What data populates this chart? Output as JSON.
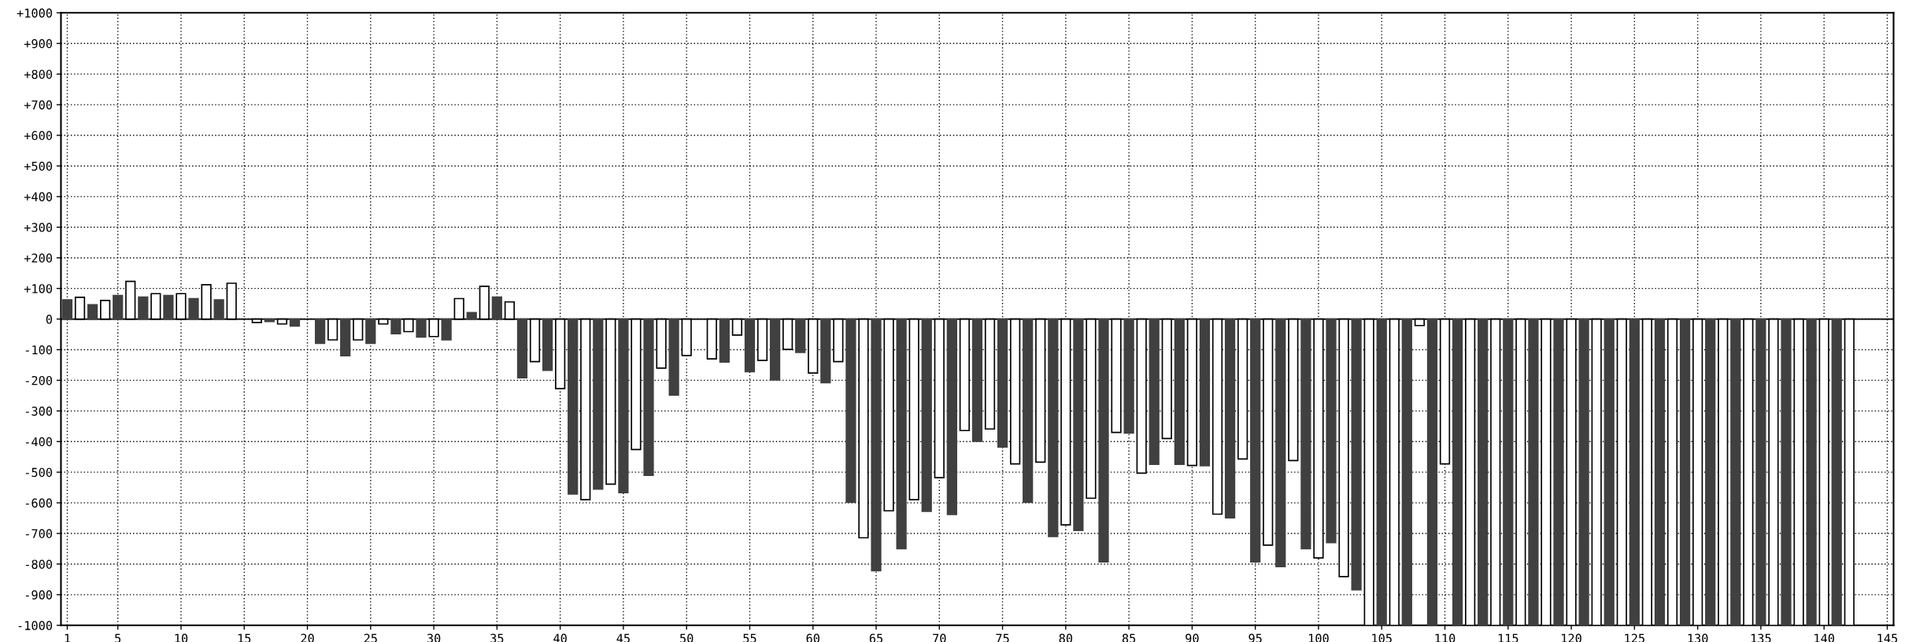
{
  "chart_data": {
    "type": "bar",
    "x": [
      1,
      2,
      3,
      4,
      5,
      6,
      7,
      8,
      9,
      10,
      11,
      12,
      13,
      14,
      15,
      16,
      17,
      18,
      19,
      20,
      21,
      22,
      23,
      24,
      25,
      26,
      27,
      28,
      29,
      30,
      31,
      32,
      33,
      34,
      35,
      36,
      37,
      38,
      39,
      40,
      41,
      42,
      43,
      44,
      45,
      46,
      47,
      48,
      49,
      50,
      51,
      52,
      53,
      54,
      55,
      56,
      57,
      58,
      59,
      60,
      61,
      62,
      63,
      64,
      65,
      66,
      67,
      68,
      69,
      70,
      71,
      72,
      73,
      74,
      75,
      76,
      77,
      78,
      79,
      80,
      81,
      82,
      83,
      84,
      85,
      86,
      87,
      88,
      89,
      90,
      91,
      92,
      93,
      94,
      95,
      96,
      97,
      98,
      99,
      100,
      101,
      102,
      103,
      104,
      105,
      106,
      107,
      108,
      109,
      110,
      111,
      112,
      113,
      114,
      115,
      116,
      117,
      118,
      119,
      120,
      121,
      122,
      123,
      124,
      125,
      126,
      127,
      128,
      129,
      130,
      131,
      132,
      133,
      134,
      135,
      136,
      137,
      138,
      139,
      140,
      141,
      142
    ],
    "values": [
      63,
      71,
      47,
      61,
      77,
      123,
      72,
      83,
      77,
      83,
      67,
      112,
      63,
      117,
      0,
      -11,
      -8,
      -16,
      -23,
      0,
      -79,
      -68,
      -120,
      -68,
      -79,
      -16,
      -48,
      -41,
      -59,
      -57,
      -68,
      67,
      21,
      107,
      72,
      56,
      -192,
      -139,
      -167,
      -227,
      -571,
      -590,
      -555,
      -539,
      -567,
      -426,
      -510,
      -160,
      -248,
      -119,
      0,
      -130,
      -140,
      -52,
      -172,
      -135,
      -199,
      -99,
      -109,
      -176,
      -208,
      -139,
      -598,
      -714,
      -822,
      -626,
      -750,
      -590,
      -628,
      -518,
      -638,
      -364,
      -399,
      -359,
      -418,
      -473,
      -598,
      -467,
      -710,
      -672,
      -690,
      -585,
      -793,
      -370,
      -372,
      -503,
      -474,
      -390,
      -474,
      -478,
      -479,
      -637,
      -649,
      -457,
      -793,
      -738,
      -808,
      -462,
      -750,
      -780,
      -730,
      -841,
      -884,
      -1000,
      -1000,
      -1000,
      -1000,
      -21,
      -1000,
      -473,
      -1000,
      -1000,
      -1000,
      -1000,
      -1000,
      -1000,
      -1000,
      -1000,
      -1000,
      -1000,
      -1000,
      -1000,
      -1000,
      -1000,
      -1000,
      -1000,
      -1000,
      -1000,
      -1000,
      -1000,
      -1000,
      -1000,
      -1000,
      -1000,
      -1000,
      -1000,
      -1000,
      -1000,
      -1000,
      -1000,
      -1000,
      -1000
    ],
    "colors": [
      "#404040",
      "#ffffff",
      "#404040",
      "#ffffff",
      "#404040",
      "#ffffff",
      "#404040",
      "#ffffff",
      "#404040",
      "#ffffff",
      "#404040",
      "#ffffff",
      "#404040",
      "#ffffff",
      "#404040",
      "#ffffff",
      "#404040",
      "#ffffff",
      "#404040",
      "#ffffff",
      "#404040",
      "#ffffff",
      "#404040",
      "#ffffff",
      "#404040",
      "#ffffff",
      "#404040",
      "#ffffff",
      "#404040",
      "#ffffff",
      "#404040",
      "#ffffff",
      "#404040",
      "#ffffff",
      "#404040",
      "#ffffff",
      "#404040",
      "#ffffff",
      "#404040",
      "#ffffff",
      "#404040",
      "#ffffff",
      "#404040",
      "#ffffff",
      "#404040",
      "#ffffff",
      "#404040",
      "#ffffff",
      "#404040",
      "#ffffff",
      "#404040",
      "#ffffff",
      "#404040",
      "#ffffff",
      "#404040",
      "#ffffff",
      "#404040",
      "#ffffff",
      "#404040",
      "#ffffff",
      "#404040",
      "#ffffff",
      "#404040",
      "#ffffff",
      "#404040",
      "#ffffff",
      "#404040",
      "#ffffff",
      "#404040",
      "#ffffff",
      "#404040",
      "#ffffff",
      "#404040",
      "#ffffff",
      "#404040",
      "#ffffff",
      "#404040",
      "#ffffff",
      "#404040",
      "#ffffff",
      "#404040",
      "#ffffff",
      "#404040",
      "#ffffff",
      "#404040",
      "#ffffff",
      "#404040",
      "#ffffff",
      "#404040",
      "#ffffff",
      "#404040",
      "#ffffff",
      "#404040",
      "#ffffff",
      "#404040",
      "#ffffff",
      "#404040",
      "#ffffff",
      "#404040",
      "#ffffff",
      "#404040",
      "#ffffff",
      "#404040",
      "#ffffff",
      "#404040",
      "#ffffff",
      "#404040",
      "#ffffff",
      "#404040",
      "#ffffff",
      "#404040",
      "#ffffff",
      "#404040",
      "#ffffff",
      "#404040",
      "#ffffff",
      "#404040",
      "#ffffff",
      "#404040",
      "#ffffff",
      "#404040",
      "#ffffff",
      "#404040",
      "#ffffff",
      "#404040",
      "#ffffff",
      "#404040",
      "#ffffff",
      "#404040",
      "#ffffff",
      "#404040",
      "#ffffff",
      "#404040",
      "#ffffff",
      "#404040",
      "#ffffff",
      "#404040",
      "#ffffff",
      "#404040",
      "#ffffff",
      "#404040",
      "#ffffff"
    ],
    "xlim": [
      0.5,
      145.5
    ],
    "xticks": [
      1,
      5,
      10,
      15,
      20,
      25,
      30,
      35,
      40,
      45,
      50,
      55,
      60,
      65,
      70,
      75,
      80,
      85,
      90,
      95,
      100,
      105,
      110,
      115,
      120,
      125,
      130,
      135,
      140,
      145
    ],
    "ylim": [
      -1000,
      1000
    ],
    "yticks": [
      {
        "value": 1000,
        "label": "+1000"
      },
      {
        "value": 900,
        "label": "+900"
      },
      {
        "value": 800,
        "label": "+800"
      },
      {
        "value": 700,
        "label": "+700"
      },
      {
        "value": 600,
        "label": "+600"
      },
      {
        "value": 500,
        "label": "+500"
      },
      {
        "value": 400,
        "label": "+400"
      },
      {
        "value": 300,
        "label": "+300"
      },
      {
        "value": 200,
        "label": "+200"
      },
      {
        "value": 100,
        "label": "+100"
      },
      0,
      -100,
      -200,
      -300,
      -400,
      -500,
      -600,
      -700,
      -800,
      -900,
      -1000
    ],
    "grid": true
  }
}
